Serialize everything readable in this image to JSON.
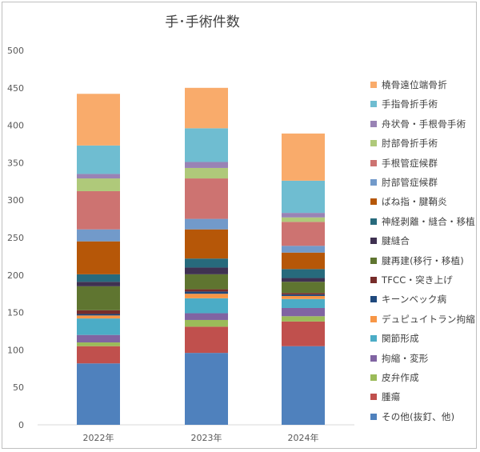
{
  "chart_data": {
    "type": "bar",
    "stacked": true,
    "title": "手･手術件数",
    "categories": [
      "2022年",
      "2023年",
      "2024年"
    ],
    "ylim": [
      0,
      500
    ],
    "yticks": [
      "0",
      "50",
      "100",
      "150",
      "200",
      "250",
      "300",
      "350",
      "400",
      "450",
      "500"
    ],
    "legend_position": "right",
    "grid": false,
    "series": [
      {
        "name": "その他(抜釘、他)",
        "color": "#4f81bd",
        "values": [
          82,
          96,
          105
        ]
      },
      {
        "name": "腫瘍",
        "color": "#c0504d",
        "values": [
          23,
          35,
          33
        ]
      },
      {
        "name": "皮弁作成",
        "color": "#9bbb59",
        "values": [
          5,
          9,
          7
        ]
      },
      {
        "name": "拘縮・変形",
        "color": "#8064a2",
        "values": [
          10,
          9,
          11
        ]
      },
      {
        "name": "関節形成",
        "color": "#4bacc6",
        "values": [
          22,
          20,
          12
        ]
      },
      {
        "name": "デュピュイトラン拘縮",
        "color": "#f79646",
        "values": [
          4,
          6,
          4
        ]
      },
      {
        "name": "キーンベック病",
        "color": "#1f497d",
        "values": [
          2,
          3,
          2
        ]
      },
      {
        "name": "TFCC・突き上げ",
        "color": "#772c2a",
        "values": [
          5,
          3,
          2
        ]
      },
      {
        "name": "腱再建(移行・移植)",
        "color": "#5f7530",
        "values": [
          32,
          20,
          15
        ]
      },
      {
        "name": "腱縫合",
        "color": "#3f3151",
        "values": [
          6,
          9,
          5
        ]
      },
      {
        "name": "神経剥離・縫合・移植",
        "color": "#276a7c",
        "values": [
          10,
          12,
          12
        ]
      },
      {
        "name": "ばね指・腱鞘炎",
        "color": "#b65708",
        "values": [
          44,
          39,
          22
        ]
      },
      {
        "name": "肘部管症候群",
        "color": "#729aca",
        "values": [
          16,
          14,
          9
        ]
      },
      {
        "name": "手根管症候群",
        "color": "#cd7371",
        "values": [
          51,
          54,
          32
        ]
      },
      {
        "name": "肘部骨折手術",
        "color": "#afc97a",
        "values": [
          17,
          14,
          6
        ]
      },
      {
        "name": "舟状骨・手根骨手術",
        "color": "#9983b5",
        "values": [
          6,
          8,
          6
        ]
      },
      {
        "name": "手指骨折手術",
        "color": "#6fbdd1",
        "values": [
          38,
          45,
          43
        ]
      },
      {
        "name": "橈骨遠位端骨折",
        "color": "#f9ab6b",
        "values": [
          69,
          54,
          63
        ]
      }
    ]
  }
}
